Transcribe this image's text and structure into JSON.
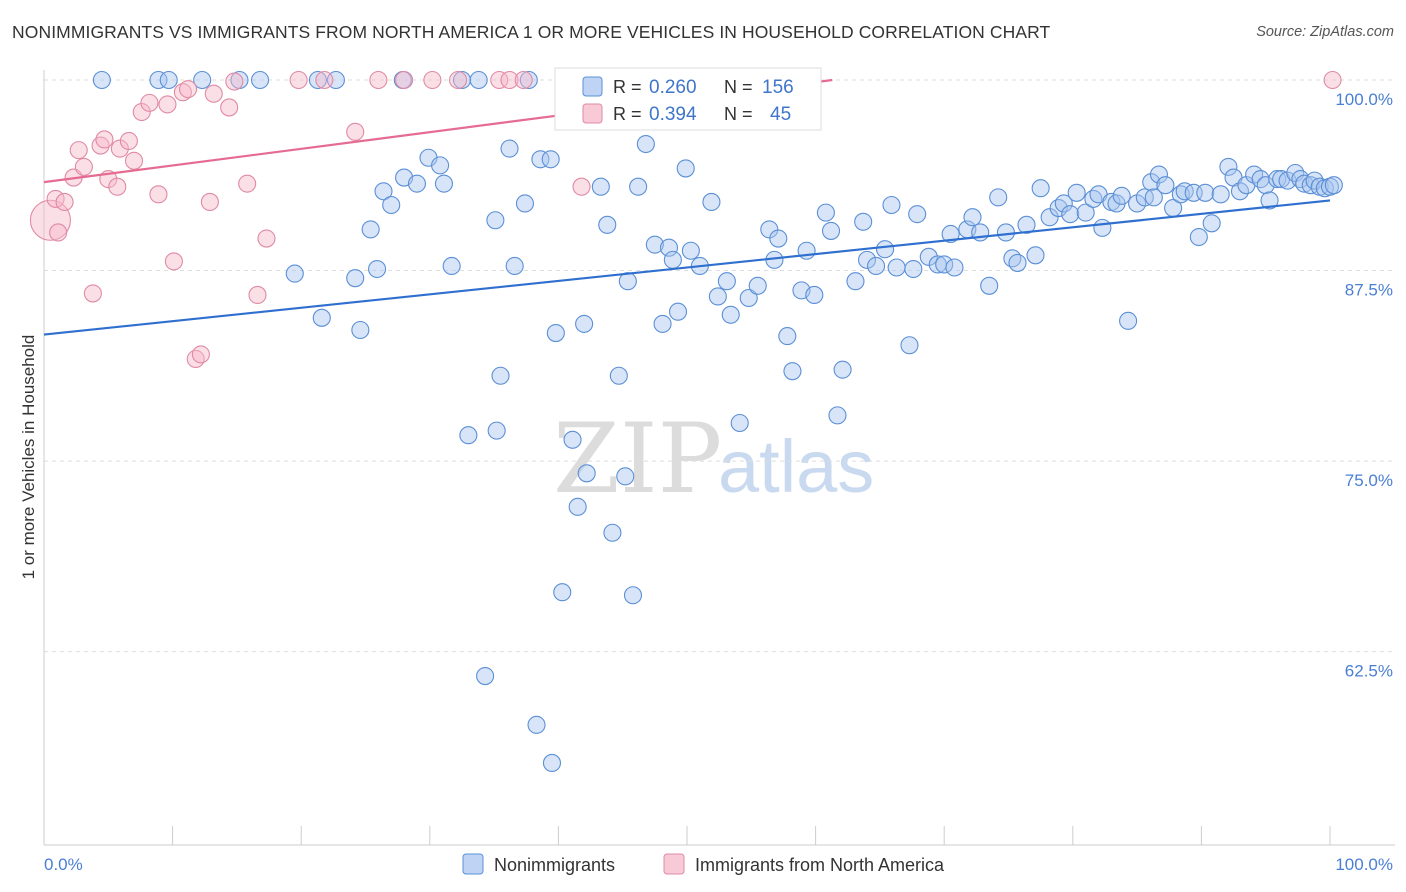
{
  "title": "NONIMMIGRANTS VS IMMIGRANTS FROM NORTH AMERICA 1 OR MORE VEHICLES IN HOUSEHOLD CORRELATION CHART",
  "source": "Source: ZipAtlas.com",
  "watermark": {
    "zip": "ZIP",
    "atlas": "atlas"
  },
  "legend_top": {
    "rows": [
      {
        "r_label": "R =",
        "r_value": "0.260",
        "n_label": "N =",
        "n_value": "156",
        "color": "#a9c6f0"
      },
      {
        "r_label": "R =",
        "r_value": "0.394",
        "n_label": "N =",
        "n_value": "45",
        "color": "#f6b7c9"
      }
    ]
  },
  "legend_bottom": {
    "items": [
      {
        "label": "Nonimmigrants",
        "color": "#a9c6f0"
      },
      {
        "label": "Immigrants from North America",
        "color": "#f6b7c9"
      }
    ]
  },
  "chart_data": {
    "type": "scatter",
    "title": "NONIMMIGRANTS VS IMMIGRANTS FROM NORTH AMERICA 1 OR MORE VEHICLES IN HOUSEHOLD CORRELATION CHART",
    "xlabel": "",
    "ylabel": "1 or more Vehicles in Household",
    "xlim": [
      0,
      100
    ],
    "ylim": [
      52.5,
      101.5
    ],
    "x_tick_labels": [
      "0.0%",
      "100.0%"
    ],
    "y_ticks": [
      62.5,
      75.0,
      87.5,
      100.0
    ],
    "y_tick_labels": [
      "62.5%",
      "75.0%",
      "87.5%",
      "100.0%"
    ],
    "grid": true,
    "legend": "bottom-center",
    "series": [
      {
        "name": "Nonimmigrants",
        "color": "#a9c6f0",
        "stroke": "#5b8fd6",
        "trend": {
          "x": [
            0,
            100
          ],
          "y": [
            83.3,
            92.1
          ],
          "color": "#2f6fcf"
        },
        "points": [
          [
            4.5,
            100
          ],
          [
            8.9,
            100
          ],
          [
            12.3,
            100
          ],
          [
            16.8,
            100
          ],
          [
            21.3,
            100
          ],
          [
            22.7,
            100
          ],
          [
            27.9,
            100
          ],
          [
            32.5,
            100
          ],
          [
            33.8,
            100
          ],
          [
            9.7,
            100
          ],
          [
            15.2,
            100
          ],
          [
            37.7,
            100
          ],
          [
            41.3,
            100
          ],
          [
            19.5,
            87.3
          ],
          [
            21.6,
            84.4
          ],
          [
            24.2,
            87.0
          ],
          [
            24.6,
            83.6
          ],
          [
            25.4,
            90.2
          ],
          [
            25.9,
            87.6
          ],
          [
            26.4,
            92.7
          ],
          [
            27.0,
            91.8
          ],
          [
            28.0,
            93.6
          ],
          [
            29.0,
            93.2
          ],
          [
            29.9,
            94.9
          ],
          [
            30.8,
            94.4
          ],
          [
            31.1,
            93.2
          ],
          [
            31.7,
            87.8
          ],
          [
            33.0,
            76.7
          ],
          [
            34.3,
            60.9
          ],
          [
            35.1,
            90.8
          ],
          [
            35.2,
            77.0
          ],
          [
            35.5,
            80.6
          ],
          [
            36.2,
            95.5
          ],
          [
            36.6,
            87.8
          ],
          [
            37.4,
            91.9
          ],
          [
            38.3,
            57.7
          ],
          [
            38.6,
            94.8
          ],
          [
            39.4,
            94.8
          ],
          [
            39.5,
            55.2
          ],
          [
            39.8,
            83.4
          ],
          [
            40.3,
            66.4
          ],
          [
            41.1,
            76.4
          ],
          [
            41.5,
            72.0
          ],
          [
            42.0,
            84.0
          ],
          [
            42.2,
            74.2
          ],
          [
            43.3,
            93.0
          ],
          [
            43.8,
            90.5
          ],
          [
            44.2,
            70.3
          ],
          [
            44.7,
            80.6
          ],
          [
            45.2,
            74.0
          ],
          [
            45.4,
            86.8
          ],
          [
            45.8,
            66.2
          ],
          [
            46.2,
            93.0
          ],
          [
            46.8,
            95.8
          ],
          [
            47.5,
            89.2
          ],
          [
            48.1,
            84.0
          ],
          [
            48.6,
            89.0
          ],
          [
            48.9,
            88.2
          ],
          [
            49.3,
            84.8
          ],
          [
            49.9,
            94.2
          ],
          [
            50.3,
            88.8
          ],
          [
            51.0,
            87.8
          ],
          [
            51.9,
            92.0
          ],
          [
            52.4,
            85.8
          ],
          [
            53.1,
            86.8
          ],
          [
            53.4,
            84.6
          ],
          [
            54.1,
            77.5
          ],
          [
            54.8,
            85.7
          ],
          [
            55.5,
            86.5
          ],
          [
            56.4,
            90.2
          ],
          [
            56.8,
            88.2
          ],
          [
            57.1,
            89.6
          ],
          [
            57.8,
            83.2
          ],
          [
            58.2,
            80.9
          ],
          [
            58.9,
            86.2
          ],
          [
            59.3,
            88.8
          ],
          [
            59.9,
            85.9
          ],
          [
            60.8,
            91.3
          ],
          [
            61.2,
            90.1
          ],
          [
            61.7,
            78.0
          ],
          [
            62.1,
            81.0
          ],
          [
            63.1,
            86.8
          ],
          [
            63.7,
            90.7
          ],
          [
            64.0,
            88.2
          ],
          [
            64.7,
            87.8
          ],
          [
            65.4,
            88.9
          ],
          [
            65.9,
            91.8
          ],
          [
            66.3,
            87.7
          ],
          [
            67.3,
            82.6
          ],
          [
            67.6,
            87.6
          ],
          [
            67.9,
            91.2
          ],
          [
            68.8,
            88.4
          ],
          [
            69.5,
            87.9
          ],
          [
            70.0,
            87.9
          ],
          [
            70.5,
            89.9
          ],
          [
            70.8,
            87.7
          ],
          [
            71.8,
            90.2
          ],
          [
            72.2,
            91.0
          ],
          [
            72.8,
            90.0
          ],
          [
            73.5,
            86.5
          ],
          [
            74.2,
            92.3
          ],
          [
            74.8,
            90.0
          ],
          [
            75.3,
            88.3
          ],
          [
            75.7,
            88.0
          ],
          [
            76.4,
            90.5
          ],
          [
            77.1,
            88.5
          ],
          [
            77.5,
            92.9
          ],
          [
            78.2,
            91.0
          ],
          [
            78.9,
            91.6
          ],
          [
            79.3,
            91.9
          ],
          [
            79.8,
            91.2
          ],
          [
            80.3,
            92.6
          ],
          [
            81.0,
            91.3
          ],
          [
            81.6,
            92.2
          ],
          [
            82.0,
            92.5
          ],
          [
            82.3,
            90.3
          ],
          [
            83.0,
            92.0
          ],
          [
            83.4,
            91.9
          ],
          [
            83.8,
            92.4
          ],
          [
            84.3,
            84.2
          ],
          [
            85.0,
            91.9
          ],
          [
            85.6,
            92.3
          ],
          [
            86.1,
            93.3
          ],
          [
            86.3,
            92.3
          ],
          [
            86.7,
            93.8
          ],
          [
            87.2,
            93.1
          ],
          [
            87.8,
            91.6
          ],
          [
            88.4,
            92.5
          ],
          [
            88.7,
            92.7
          ],
          [
            89.4,
            92.6
          ],
          [
            89.8,
            89.7
          ],
          [
            90.3,
            92.6
          ],
          [
            90.8,
            90.6
          ],
          [
            91.5,
            92.5
          ],
          [
            92.1,
            94.3
          ],
          [
            92.5,
            93.6
          ],
          [
            93.0,
            92.7
          ],
          [
            93.5,
            93.1
          ],
          [
            94.1,
            93.8
          ],
          [
            94.6,
            93.5
          ],
          [
            95.0,
            93.1
          ],
          [
            95.3,
            92.1
          ],
          [
            95.9,
            93.5
          ],
          [
            96.2,
            93.5
          ],
          [
            96.7,
            93.4
          ],
          [
            97.3,
            93.9
          ],
          [
            97.7,
            93.5
          ],
          [
            98.0,
            93.2
          ],
          [
            98.5,
            93.1
          ],
          [
            98.8,
            93.4
          ],
          [
            99.2,
            93.0
          ],
          [
            99.6,
            92.9
          ],
          [
            100.0,
            93.0
          ],
          [
            100.3,
            93.1
          ]
        ]
      },
      {
        "name": "Immigrants from North America",
        "color": "#f6b7c9",
        "stroke": "#e08aa5",
        "trend": {
          "x": [
            0,
            61.3
          ],
          "y": [
            93.3,
            100
          ],
          "color": "#e56b92"
        },
        "points": [
          [
            0.5,
            90.8
          ],
          [
            0.9,
            92.2
          ],
          [
            1.1,
            90.0
          ],
          [
            1.6,
            92.0
          ],
          [
            2.3,
            93.6
          ],
          [
            2.7,
            95.4
          ],
          [
            3.1,
            94.3
          ],
          [
            3.8,
            86.0
          ],
          [
            4.4,
            95.7
          ],
          [
            4.7,
            96.1
          ],
          [
            5.0,
            93.5
          ],
          [
            5.7,
            93.0
          ],
          [
            5.9,
            95.5
          ],
          [
            6.6,
            96.0
          ],
          [
            7.0,
            94.7
          ],
          [
            7.6,
            97.9
          ],
          [
            8.2,
            98.5
          ],
          [
            8.9,
            92.5
          ],
          [
            9.6,
            98.4
          ],
          [
            10.1,
            88.1
          ],
          [
            10.8,
            99.2
          ],
          [
            11.2,
            99.4
          ],
          [
            11.8,
            81.7
          ],
          [
            12.2,
            82.0
          ],
          [
            12.9,
            92.0
          ],
          [
            13.2,
            99.1
          ],
          [
            14.4,
            98.2
          ],
          [
            14.8,
            99.9
          ],
          [
            15.8,
            93.2
          ],
          [
            16.6,
            85.9
          ],
          [
            17.3,
            89.6
          ],
          [
            19.8,
            100
          ],
          [
            21.8,
            100
          ],
          [
            24.2,
            96.6
          ],
          [
            26.0,
            100
          ],
          [
            28.0,
            100
          ],
          [
            30.2,
            100
          ],
          [
            32.2,
            100
          ],
          [
            35.4,
            100
          ],
          [
            36.2,
            100
          ],
          [
            37.3,
            100
          ],
          [
            41.5,
            100
          ],
          [
            41.8,
            93.0
          ],
          [
            57.6,
            100
          ],
          [
            100.2,
            100
          ]
        ],
        "large_points": [
          [
            0.5,
            90.8
          ]
        ]
      }
    ]
  }
}
